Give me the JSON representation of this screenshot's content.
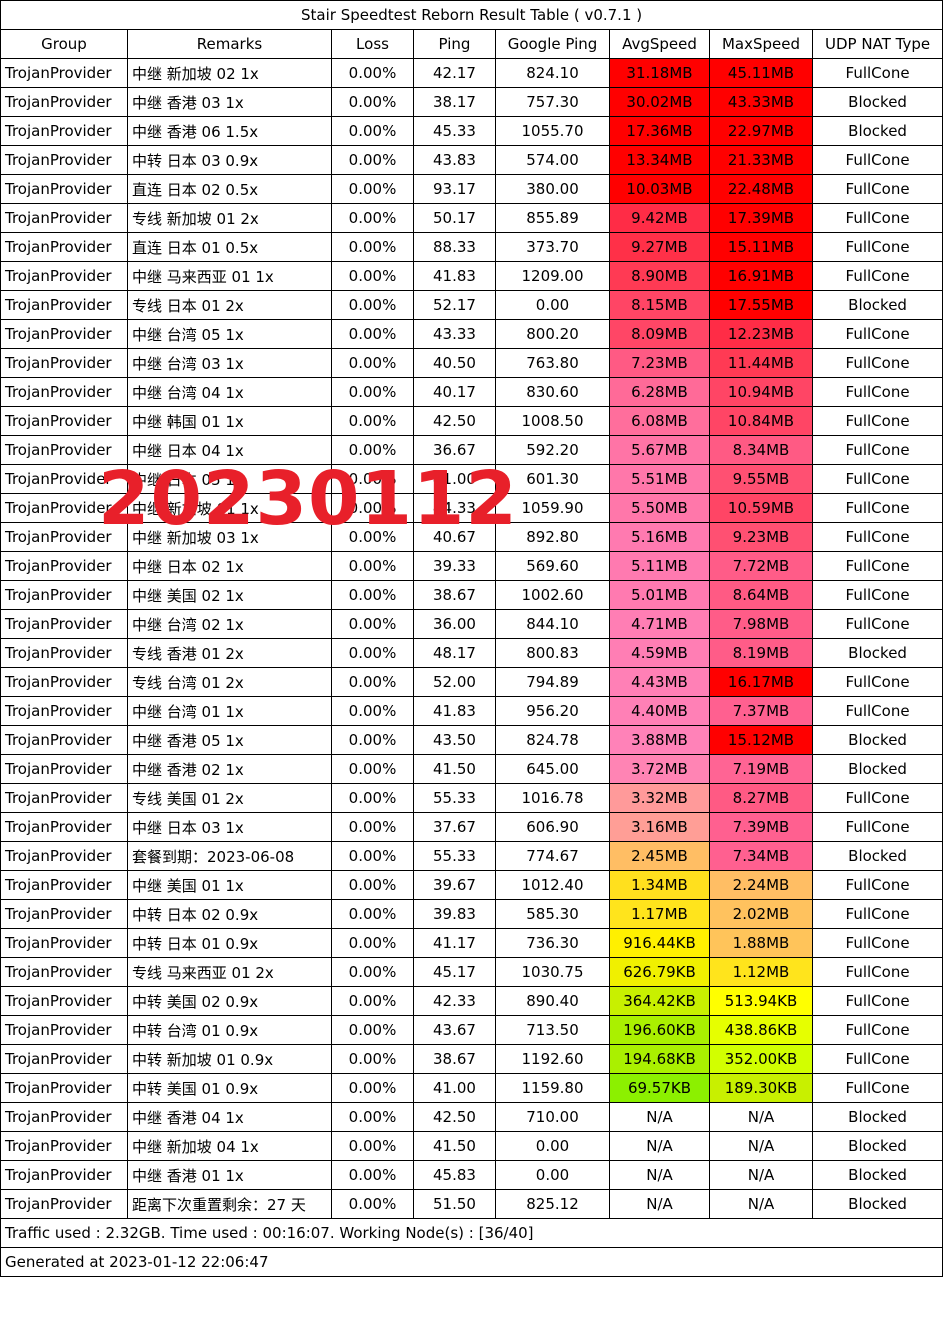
{
  "title": "Stair Speedtest Reborn Result Table ( v0.7.1 )",
  "headers": [
    "Group",
    "Remarks",
    "Loss",
    "Ping",
    "Google Ping",
    "AvgSpeed",
    "MaxSpeed",
    "UDP NAT Type"
  ],
  "rows": [
    {
      "group": "TrojanProvider",
      "remarks": "中继 新加坡 02 1x",
      "loss": "0.00%",
      "ping": "42.17",
      "gping": "824.10",
      "avg": "31.18MB",
      "max": "45.11MB",
      "nat": "FullCone",
      "avg_color": "#ff0000",
      "max_color": "#ff0000"
    },
    {
      "group": "TrojanProvider",
      "remarks": "中继 香港 03 1x",
      "loss": "0.00%",
      "ping": "38.17",
      "gping": "757.30",
      "avg": "30.02MB",
      "max": "43.33MB",
      "nat": "Blocked",
      "avg_color": "#ff0000",
      "max_color": "#ff0000"
    },
    {
      "group": "TrojanProvider",
      "remarks": "中继 香港 06 1.5x",
      "loss": "0.00%",
      "ping": "45.33",
      "gping": "1055.70",
      "avg": "17.36MB",
      "max": "22.97MB",
      "nat": "Blocked",
      "avg_color": "#ff0000",
      "max_color": "#ff0000"
    },
    {
      "group": "TrojanProvider",
      "remarks": "中转 日本 03 0.9x",
      "loss": "0.00%",
      "ping": "43.83",
      "gping": "574.00",
      "avg": "13.34MB",
      "max": "21.33MB",
      "nat": "FullCone",
      "avg_color": "#ff0000",
      "max_color": "#ff0000"
    },
    {
      "group": "TrojanProvider",
      "remarks": "直连 日本 02 0.5x",
      "loss": "0.00%",
      "ping": "93.17",
      "gping": "380.00",
      "avg": "10.03MB",
      "max": "22.48MB",
      "nat": "FullCone",
      "avg_color": "#ff0000",
      "max_color": "#ff0000"
    },
    {
      "group": "TrojanProvider",
      "remarks": "专线 新加坡 01 2x",
      "loss": "0.00%",
      "ping": "50.17",
      "gping": "855.89",
      "avg": "9.42MB",
      "max": "17.39MB",
      "nat": "FullCone",
      "avg_color": "#ff2c46",
      "max_color": "#ff0000"
    },
    {
      "group": "TrojanProvider",
      "remarks": "直连 日本 01 0.5x",
      "loss": "0.00%",
      "ping": "88.33",
      "gping": "373.70",
      "avg": "9.27MB",
      "max": "15.11MB",
      "nat": "FullCone",
      "avg_color": "#ff3048",
      "max_color": "#ff0000"
    },
    {
      "group": "TrojanProvider",
      "remarks": "中继 马来西亚 01 1x",
      "loss": "0.00%",
      "ping": "41.83",
      "gping": "1209.00",
      "avg": "8.90MB",
      "max": "16.91MB",
      "nat": "FullCone",
      "avg_color": "#ff3a54",
      "max_color": "#ff0000"
    },
    {
      "group": "TrojanProvider",
      "remarks": "专线 日本 01 2x",
      "loss": "0.00%",
      "ping": "52.17",
      "gping": "0.00",
      "avg": "8.15MB",
      "max": "17.55MB",
      "nat": "Blocked",
      "avg_color": "#ff4565",
      "max_color": "#ff0000"
    },
    {
      "group": "TrojanProvider",
      "remarks": "中继 台湾 05 1x",
      "loss": "0.00%",
      "ping": "43.33",
      "gping": "800.20",
      "avg": "8.09MB",
      "max": "12.23MB",
      "nat": "FullCone",
      "avg_color": "#ff4666",
      "max_color": "#ff2c46"
    },
    {
      "group": "TrojanProvider",
      "remarks": "中继 台湾 03 1x",
      "loss": "0.00%",
      "ping": "40.50",
      "gping": "763.80",
      "avg": "7.23MB",
      "max": "11.44MB",
      "nat": "FullCone",
      "avg_color": "#ff5a84",
      "max_color": "#ff3a54"
    },
    {
      "group": "TrojanProvider",
      "remarks": "中继 台湾 04 1x",
      "loss": "0.00%",
      "ping": "40.17",
      "gping": "830.60",
      "avg": "6.28MB",
      "max": "10.94MB",
      "nat": "FullCone",
      "avg_color": "#ff6a98",
      "max_color": "#ff4565"
    },
    {
      "group": "TrojanProvider",
      "remarks": "中继 韩国 01 1x",
      "loss": "0.00%",
      "ping": "42.50",
      "gping": "1008.50",
      "avg": "6.08MB",
      "max": "10.84MB",
      "nat": "FullCone",
      "avg_color": "#ff6e9c",
      "max_color": "#ff4565"
    },
    {
      "group": "TrojanProvider",
      "remarks": "中继 日本 04 1x",
      "loss": "0.00%",
      "ping": "36.67",
      "gping": "592.20",
      "avg": "5.67MB",
      "max": "8.34MB",
      "nat": "FullCone",
      "avg_color": "#ff74a6",
      "max_color": "#ff5a84"
    },
    {
      "group": "TrojanProvider",
      "remarks": "中继 日本 05 1x",
      "loss": "0.00%",
      "ping": "41.00",
      "gping": "601.30",
      "avg": "5.51MB",
      "max": "9.55MB",
      "nat": "FullCone",
      "avg_color": "#ff77aa",
      "max_color": "#ff5072"
    },
    {
      "group": "TrojanProvider",
      "remarks": "中继 新加坡 01 1x",
      "loss": "0.00%",
      "ping": "44.33",
      "gping": "1059.90",
      "avg": "5.50MB",
      "max": "10.59MB",
      "nat": "FullCone",
      "avg_color": "#ff77aa",
      "max_color": "#ff4565"
    },
    {
      "group": "TrojanProvider",
      "remarks": "中继 新加坡 03 1x",
      "loss": "0.00%",
      "ping": "40.67",
      "gping": "892.80",
      "avg": "5.16MB",
      "max": "9.23MB",
      "nat": "FullCone",
      "avg_color": "#ff7ab0",
      "max_color": "#ff5072"
    },
    {
      "group": "TrojanProvider",
      "remarks": "中继 日本 02 1x",
      "loss": "0.00%",
      "ping": "39.33",
      "gping": "569.60",
      "avg": "5.11MB",
      "max": "7.72MB",
      "nat": "FullCone",
      "avg_color": "#ff7ab0",
      "max_color": "#ff5c88"
    },
    {
      "group": "TrojanProvider",
      "remarks": "中继 美国 02 1x",
      "loss": "0.00%",
      "ping": "38.67",
      "gping": "1002.60",
      "avg": "5.01MB",
      "max": "8.64MB",
      "nat": "FullCone",
      "avg_color": "#ff7ab0",
      "max_color": "#ff5a84"
    },
    {
      "group": "TrojanProvider",
      "remarks": "中继 台湾 02 1x",
      "loss": "0.00%",
      "ping": "36.00",
      "gping": "844.10",
      "avg": "4.71MB",
      "max": "7.98MB",
      "nat": "FullCone",
      "avg_color": "#ff7eb4",
      "max_color": "#ff5c88"
    },
    {
      "group": "TrojanProvider",
      "remarks": "专线 香港 01 2x",
      "loss": "0.00%",
      "ping": "48.17",
      "gping": "800.83",
      "avg": "4.59MB",
      "max": "8.19MB",
      "nat": "Blocked",
      "avg_color": "#ff7eb4",
      "max_color": "#ff5c88"
    },
    {
      "group": "TrojanProvider",
      "remarks": "专线 台湾 01 2x",
      "loss": "0.00%",
      "ping": "52.00",
      "gping": "794.89",
      "avg": "4.43MB",
      "max": "16.17MB",
      "nat": "FullCone",
      "avg_color": "#ff80b6",
      "max_color": "#ff0000"
    },
    {
      "group": "TrojanProvider",
      "remarks": "中继 台湾 01 1x",
      "loss": "0.00%",
      "ping": "41.83",
      "gping": "956.20",
      "avg": "4.40MB",
      "max": "7.37MB",
      "nat": "FullCone",
      "avg_color": "#ff80b6",
      "max_color": "#ff6090"
    },
    {
      "group": "TrojanProvider",
      "remarks": "中继 香港 05 1x",
      "loss": "0.00%",
      "ping": "43.50",
      "gping": "824.78",
      "avg": "3.88MB",
      "max": "15.12MB",
      "nat": "Blocked",
      "avg_color": "#ff82b8",
      "max_color": "#ff0000"
    },
    {
      "group": "TrojanProvider",
      "remarks": "中继 香港 02 1x",
      "loss": "0.00%",
      "ping": "41.50",
      "gping": "645.00",
      "avg": "3.72MB",
      "max": "7.19MB",
      "nat": "Blocked",
      "avg_color": "#ff84b4",
      "max_color": "#ff6494"
    },
    {
      "group": "TrojanProvider",
      "remarks": "专线 美国 01 2x",
      "loss": "0.00%",
      "ping": "55.33",
      "gping": "1016.78",
      "avg": "3.32MB",
      "max": "8.27MB",
      "nat": "FullCone",
      "avg_color": "#ff9a9a",
      "max_color": "#ff5a84"
    },
    {
      "group": "TrojanProvider",
      "remarks": "中继 日本 03 1x",
      "loss": "0.00%",
      "ping": "37.67",
      "gping": "606.90",
      "avg": "3.16MB",
      "max": "7.39MB",
      "nat": "FullCone",
      "avg_color": "#ff9e96",
      "max_color": "#ff6090"
    },
    {
      "group": "TrojanProvider",
      "remarks": "套餐到期：2023-06-08",
      "loss": "0.00%",
      "ping": "55.33",
      "gping": "774.67",
      "avg": "2.45MB",
      "max": "7.34MB",
      "nat": "Blocked",
      "avg_color": "#ffbe64",
      "max_color": "#ff6090"
    },
    {
      "group": "TrojanProvider",
      "remarks": "中继 美国 01 1x",
      "loss": "0.00%",
      "ping": "39.67",
      "gping": "1012.40",
      "avg": "1.34MB",
      "max": "2.24MB",
      "nat": "FullCone",
      "avg_color": "#ffe01e",
      "max_color": "#ffbe64"
    },
    {
      "group": "TrojanProvider",
      "remarks": "中转 日本 02 0.9x",
      "loss": "0.00%",
      "ping": "39.83",
      "gping": "585.30",
      "avg": "1.17MB",
      "max": "2.02MB",
      "nat": "FullCone",
      "avg_color": "#ffe41c",
      "max_color": "#ffc25e"
    },
    {
      "group": "TrojanProvider",
      "remarks": "中转 日本 01 0.9x",
      "loss": "0.00%",
      "ping": "41.17",
      "gping": "736.30",
      "avg": "916.44KB",
      "max": "1.88MB",
      "nat": "FullCone",
      "avg_color": "#fff000",
      "max_color": "#ffc45a"
    },
    {
      "group": "TrojanProvider",
      "remarks": "专线 马来西亚 01 2x",
      "loss": "0.00%",
      "ping": "45.17",
      "gping": "1030.75",
      "avg": "626.79KB",
      "max": "1.12MB",
      "nat": "FullCone",
      "avg_color": "#f0f000",
      "max_color": "#ffe41c"
    },
    {
      "group": "TrojanProvider",
      "remarks": "中转 美国 02 0.9x",
      "loss": "0.00%",
      "ping": "42.33",
      "gping": "890.40",
      "avg": "364.42KB",
      "max": "513.94KB",
      "nat": "FullCone",
      "avg_color": "#c8f000",
      "max_color": "#ffff00"
    },
    {
      "group": "TrojanProvider",
      "remarks": "中转 台湾 01 0.9x",
      "loss": "0.00%",
      "ping": "43.67",
      "gping": "713.50",
      "avg": "196.60KB",
      "max": "438.86KB",
      "nat": "FullCone",
      "avg_color": "#aaf000",
      "max_color": "#e6ff00"
    },
    {
      "group": "TrojanProvider",
      "remarks": "中转 新加坡 01 0.9x",
      "loss": "0.00%",
      "ping": "38.67",
      "gping": "1192.60",
      "avg": "194.68KB",
      "max": "352.00KB",
      "nat": "FullCone",
      "avg_color": "#aaf000",
      "max_color": "#d2ff00"
    },
    {
      "group": "TrojanProvider",
      "remarks": "中转 美国 01 0.9x",
      "loss": "0.00%",
      "ping": "41.00",
      "gping": "1159.80",
      "avg": "69.57KB",
      "max": "189.30KB",
      "nat": "FullCone",
      "avg_color": "#8cf000",
      "max_color": "#c8f000"
    },
    {
      "group": "TrojanProvider",
      "remarks": "中继 香港 04 1x",
      "loss": "0.00%",
      "ping": "42.50",
      "gping": "710.00",
      "avg": "N/A",
      "max": "N/A",
      "nat": "Blocked",
      "avg_color": "#ffffff",
      "max_color": "#ffffff"
    },
    {
      "group": "TrojanProvider",
      "remarks": "中继 新加坡 04 1x",
      "loss": "0.00%",
      "ping": "41.50",
      "gping": "0.00",
      "avg": "N/A",
      "max": "N/A",
      "nat": "Blocked",
      "avg_color": "#ffffff",
      "max_color": "#ffffff"
    },
    {
      "group": "TrojanProvider",
      "remarks": "中继 香港 01 1x",
      "loss": "0.00%",
      "ping": "45.83",
      "gping": "0.00",
      "avg": "N/A",
      "max": "N/A",
      "nat": "Blocked",
      "avg_color": "#ffffff",
      "max_color": "#ffffff"
    },
    {
      "group": "TrojanProvider",
      "remarks": "距离下次重置剩余：27 天",
      "loss": "0.00%",
      "ping": "51.50",
      "gping": "825.12",
      "avg": "N/A",
      "max": "N/A",
      "nat": "Blocked",
      "avg_color": "#ffffff",
      "max_color": "#ffffff"
    }
  ],
  "footer": {
    "traffic": "Traffic used : 2.32GB. Time used : 00:16:07. Working Node(s) : [36/40]",
    "generated": "Generated at 2023-01-12 22:06:47"
  },
  "watermark": "20230112"
}
